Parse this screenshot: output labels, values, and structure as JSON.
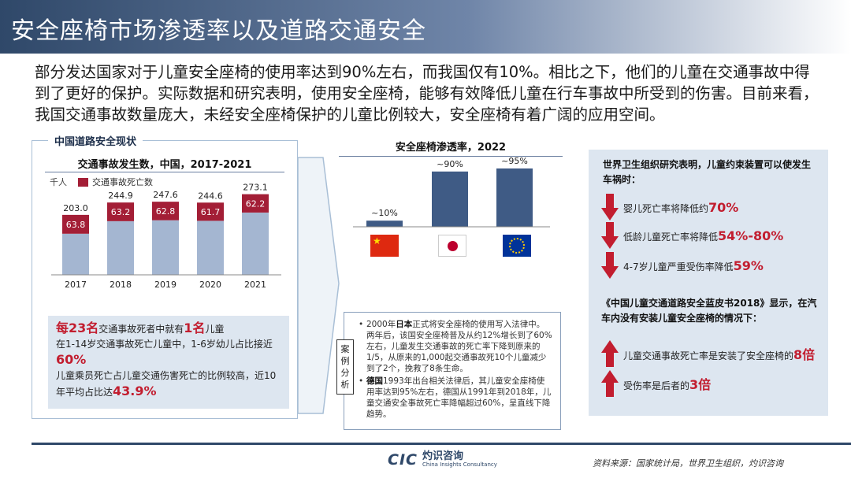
{
  "header": {
    "title": "安全座椅市场渗透率以及道路交通安全"
  },
  "intro": "部分发达国家对于儿童安全座椅的使用率达到90%左右，而我国仅有10%。相比之下，他们的儿童在交通事故中得到了更好的保护。实际数据和研究表明，使用安全座椅，能够有效降低儿童在行车事故中所受到的伤害。目前来看，我国交通事故数量庞大，未经安全座椅保护的儿童比例较大，安全座椅有着广阔的应用空间。",
  "left_panel": {
    "tag": "中国道路安全现状",
    "stats": {
      "s1_a": "每23名",
      "s1_b": "交通事故死者中就有",
      "s1_c": "1名",
      "s1_d": "儿童",
      "s2_a": "在1-14岁交通事故死亡儿童中，1-6岁幼儿占比接近",
      "s2_b": "60%",
      "s3_a": "儿童乘员死亡占儿童交通伤害死亡的比例较高，近10年平均占比达",
      "s3_b": "43.9%"
    }
  },
  "chart_data": [
    {
      "type": "bar",
      "title": "交通事故发生数，中国，2017-2021",
      "unit": "千人",
      "categories": [
        "2017",
        "2018",
        "2019",
        "2020",
        "2021"
      ],
      "series": [
        {
          "name": "",
          "values": [
            139.2,
            181.7,
            184.8,
            182.9,
            210.9
          ]
        },
        {
          "name": "交通事故死亡数",
          "values": [
            63.8,
            63.2,
            62.8,
            61.7,
            62.2
          ]
        }
      ],
      "totals": [
        203.0,
        244.9,
        247.6,
        244.6,
        273.1
      ],
      "total_labels": [
        "203.0",
        "244.9",
        "247.6",
        "244.6",
        "273.1"
      ],
      "death_labels": [
        "63.8",
        "63.2",
        "62.8",
        "61.7",
        "62.2"
      ],
      "ylim": [
        0,
        280
      ],
      "colors": {
        "base": "#a4b6d1",
        "deaths": "#a31e36"
      }
    },
    {
      "type": "bar",
      "title": "安全座椅渗透率，2022",
      "categories": [
        "中国",
        "日本",
        "欧盟"
      ],
      "values": [
        10,
        90,
        95
      ],
      "value_labels": [
        "~10%",
        "~90%",
        "~95%"
      ],
      "ylim": [
        0,
        100
      ],
      "colors": {
        "bar": "#3f5b85"
      }
    }
  ],
  "flags": [
    "china-flag",
    "japan-flag",
    "eu-flag"
  ],
  "case_study": {
    "tag": "案例分析",
    "item1_a": "2000年",
    "item1_b": "日本",
    "item1_c": "正式将安全座椅的使用写入法律中。两年后，该国安全座椅普及从约12%增长到了60%左右，儿童发生交通事故的死亡率下降到原来的1/5，从原来的1,000起交通事故死10个儿童减少到了2个，挽救了8条生命。",
    "item2_a": "德国",
    "item2_b": "1993年出台相关法律后，其儿童安全座椅使用率达到95%左右，德国从1991年到2018年，儿童交通安全事故死亡率降幅超过60%，呈直线下降趋势。"
  },
  "right_panel": {
    "head1": "世界卫生组织研究表明，儿童约束装置可以使发生车祸时：",
    "items_down": [
      {
        "text": "婴儿死亡率将降低约",
        "value": "70%"
      },
      {
        "text": "低龄儿童死亡率将降低",
        "value": "54%-80%"
      },
      {
        "text": "4-7岁儿童严重受伤率降低",
        "value": "59%"
      }
    ],
    "head2": "《中国儿童交通道路安全蓝皮书2018》显示，在汽车内没有安装儿童安全座椅的情况下：",
    "items_up": [
      {
        "text": "儿童交通事故死亡率是安装了安全座椅的",
        "value": "8倍"
      },
      {
        "text": "受伤率是后者的",
        "value": "3倍"
      }
    ],
    "arrow_color": "#c21d2f"
  },
  "footer": {
    "logo": "CIC",
    "brand": "灼识咨询",
    "brand_sub": "China Insights Consultancy",
    "source": "资料来源：国家统计局，世界卫生组织，灼识咨询"
  }
}
